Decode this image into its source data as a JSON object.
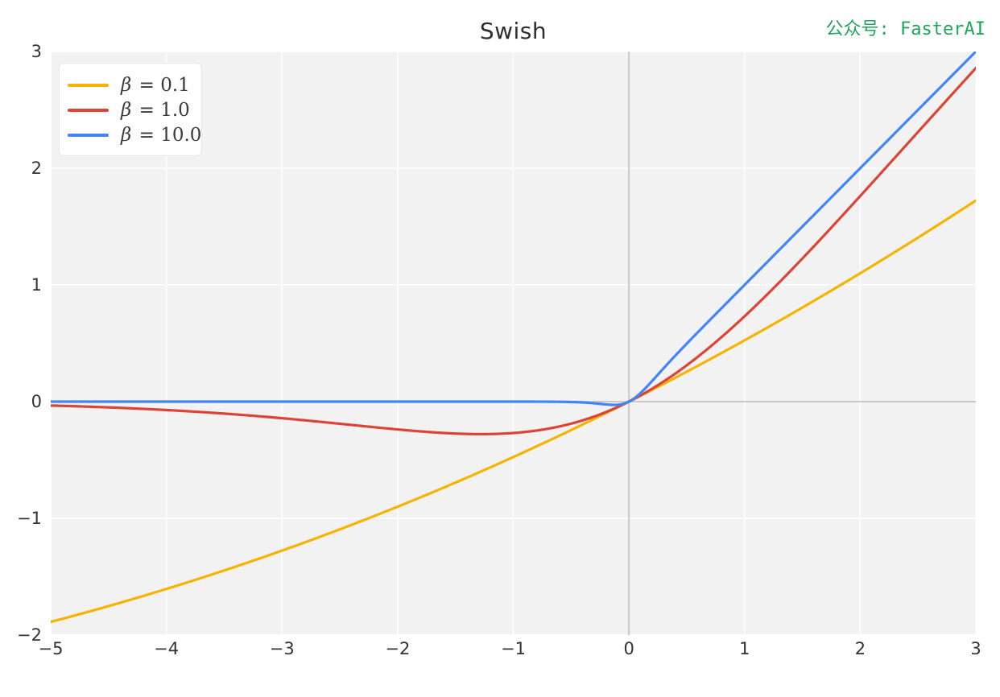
{
  "watermark": {
    "text": "公众号: FasterAI",
    "color": "#21A45D"
  },
  "chart_data": {
    "type": "line",
    "title": "Swish",
    "xlabel": "",
    "ylabel": "",
    "x_range": [
      -5,
      3
    ],
    "y_range": [
      -2,
      3
    ],
    "grid": true,
    "zero_lines": true,
    "legend_position": "upper-left",
    "formula": "swish(x, beta) = x / (1 + exp(-beta * x))",
    "xticks": {
      "values": [
        -5,
        -4,
        -3,
        -2,
        -1,
        0,
        1,
        2,
        3
      ],
      "labels": [
        "−5",
        "−4",
        "−3",
        "−2",
        "−1",
        "0",
        "1",
        "2",
        "3"
      ]
    },
    "yticks": {
      "values": [
        3,
        2,
        1,
        0,
        -1,
        -2
      ],
      "labels": [
        "3",
        "2",
        "1",
        "0",
        "−1",
        "−2"
      ]
    },
    "series": [
      {
        "name": "β = 0.1",
        "beta": 0.1,
        "color": "#F4B400"
      },
      {
        "name": "β = 1.0",
        "beta": 1.0,
        "color": "#DB4437"
      },
      {
        "name": "β = 10.0",
        "beta": 10.0,
        "color": "#4285F4"
      }
    ],
    "sample_points": {
      "x": [
        -5,
        -4,
        -3,
        -2,
        -1,
        0,
        1,
        2,
        3
      ],
      "series_y": [
        [
          -1.8877,
          -1.6052,
          -1.2767,
          -0.9003,
          -0.475,
          0,
          0.525,
          1.0997,
          1.7233
        ],
        [
          -0.0335,
          -0.0719,
          -0.1423,
          -0.2384,
          -0.2689,
          0,
          0.7311,
          1.7616,
          2.8577
        ],
        [
          0,
          0,
          0,
          0,
          -5e-05,
          0,
          0.99995,
          2,
          3
        ]
      ]
    },
    "colors": {
      "figure_bg": "#FFFFFF",
      "axes_bg": "#F2F2F2",
      "grid": "#FFFFFF",
      "zero_line": "#C9C9C9",
      "tick_label": "#333333",
      "title": "#2E2E2E"
    }
  }
}
